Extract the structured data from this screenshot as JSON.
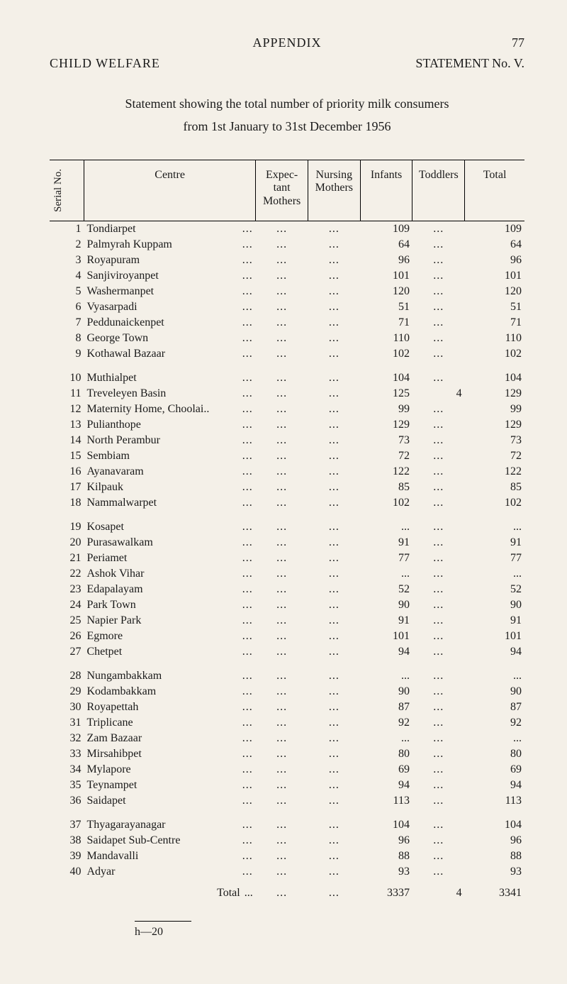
{
  "page": {
    "appendix": "APPENDIX",
    "page_number": "77",
    "left_title": "CHILD WELFARE",
    "right_title": "STATEMENT No. V.",
    "intro_line1": "Statement showing the total number of priority milk consumers",
    "intro_line2": "from 1st January to 31st December 1956",
    "footer": "h—20"
  },
  "table": {
    "columns": {
      "serial": "Serial\nNo.",
      "centre": "Centre",
      "expectant": "Expec-\ntant\nMothers",
      "nursing": "Nursing\nMothers",
      "infants": "Infants",
      "toddlers": "Toddlers",
      "total": "Total"
    },
    "rows": [
      {
        "n": "1",
        "centre": "Tondiarpet",
        "exp": "...",
        "nur": "...",
        "inf": "109",
        "tod": "...",
        "tot": "109"
      },
      {
        "n": "2",
        "centre": "Palmyrah Kuppam",
        "exp": "...",
        "nur": "...",
        "inf": "64",
        "tod": "...",
        "tot": "64"
      },
      {
        "n": "3",
        "centre": "Royapuram",
        "exp": "...",
        "nur": "...",
        "inf": "96",
        "tod": "...",
        "tot": "96"
      },
      {
        "n": "4",
        "centre": "Sanjiviroyanpet",
        "exp": "...",
        "nur": "...",
        "inf": "101",
        "tod": "...",
        "tot": "101"
      },
      {
        "n": "5",
        "centre": "Washermanpet",
        "exp": "...",
        "nur": "...",
        "inf": "120",
        "tod": "...",
        "tot": "120"
      },
      {
        "n": "6",
        "centre": "Vyasarpadi",
        "exp": "...",
        "nur": "...",
        "inf": "51",
        "tod": "...",
        "tot": "51"
      },
      {
        "n": "7",
        "centre": "Peddunaickenpet",
        "exp": "...",
        "nur": "...",
        "inf": "71",
        "tod": "...",
        "tot": "71"
      },
      {
        "n": "8",
        "centre": "George Town",
        "exp": "...",
        "nur": "...",
        "inf": "110",
        "tod": "...",
        "tot": "110"
      },
      {
        "n": "9",
        "centre": "Kothawal Bazaar",
        "exp": "...",
        "nur": "...",
        "inf": "102",
        "tod": "...",
        "tot": "102"
      },
      {
        "n": "10",
        "centre": "Muthialpet",
        "exp": "...",
        "nur": "...",
        "inf": "104",
        "tod": "...",
        "tot": "104",
        "gap": true
      },
      {
        "n": "11",
        "centre": "Treveleyen Basin",
        "exp": "...",
        "nur": "...",
        "inf": "125",
        "tod": "4",
        "tot": "129"
      },
      {
        "n": "12",
        "centre": "Maternity Home, Choolai..",
        "exp": "...",
        "nur": "...",
        "inf": "99",
        "tod": "...",
        "tot": "99"
      },
      {
        "n": "13",
        "centre": "Pulianthope",
        "exp": "...",
        "nur": "...",
        "inf": "129",
        "tod": "...",
        "tot": "129"
      },
      {
        "n": "14",
        "centre": "North Perambur",
        "exp": "...",
        "nur": "...",
        "inf": "73",
        "tod": "...",
        "tot": "73"
      },
      {
        "n": "15",
        "centre": "Sembiam",
        "exp": "...",
        "nur": "...",
        "inf": "72",
        "tod": "...",
        "tot": "72"
      },
      {
        "n": "16",
        "centre": "Ayanavaram",
        "exp": "...",
        "nur": "...",
        "inf": "122",
        "tod": "...",
        "tot": "122"
      },
      {
        "n": "17",
        "centre": "Kilpauk",
        "exp": "...",
        "nur": "...",
        "inf": "85",
        "tod": "...",
        "tot": "85"
      },
      {
        "n": "18",
        "centre": "Nammalwarpet",
        "exp": "...",
        "nur": "...",
        "inf": "102",
        "tod": "...",
        "tot": "102"
      },
      {
        "n": "19",
        "centre": "Kosapet",
        "exp": "...",
        "nur": "...",
        "inf": "...",
        "tod": "...",
        "tot": "...",
        "gap": true
      },
      {
        "n": "20",
        "centre": "Purasawalkam",
        "exp": "...",
        "nur": "...",
        "inf": "91",
        "tod": "...",
        "tot": "91"
      },
      {
        "n": "21",
        "centre": "Periamet",
        "exp": "...",
        "nur": "...",
        "inf": "77",
        "tod": "...",
        "tot": "77"
      },
      {
        "n": "22",
        "centre": "Ashok Vihar",
        "exp": "...",
        "nur": "...",
        "inf": "...",
        "tod": "...",
        "tot": "..."
      },
      {
        "n": "23",
        "centre": "Edapalayam",
        "exp": "...",
        "nur": "...",
        "inf": "52",
        "tod": "...",
        "tot": "52"
      },
      {
        "n": "24",
        "centre": "Park Town",
        "exp": "...",
        "nur": "...",
        "inf": "90",
        "tod": "...",
        "tot": "90"
      },
      {
        "n": "25",
        "centre": "Napier Park",
        "exp": "...",
        "nur": "...",
        "inf": "91",
        "tod": "...",
        "tot": "91"
      },
      {
        "n": "26",
        "centre": "Egmore",
        "exp": "...",
        "nur": "...",
        "inf": "101",
        "tod": "...",
        "tot": "101"
      },
      {
        "n": "27",
        "centre": "Chetpet",
        "exp": "...",
        "nur": "...",
        "inf": "94",
        "tod": "...",
        "tot": "94"
      },
      {
        "n": "28",
        "centre": "Nungambakkam",
        "exp": "...",
        "nur": "...",
        "inf": "...",
        "tod": "...",
        "tot": "...",
        "gap": true
      },
      {
        "n": "29",
        "centre": "Kodambakkam",
        "exp": "...",
        "nur": "...",
        "inf": "90",
        "tod": "...",
        "tot": "90"
      },
      {
        "n": "30",
        "centre": "Royapettah",
        "exp": "...",
        "nur": "...",
        "inf": "87",
        "tod": "...",
        "tot": "87"
      },
      {
        "n": "31",
        "centre": "Triplicane",
        "exp": "...",
        "nur": "...",
        "inf": "92",
        "tod": "...",
        "tot": "92"
      },
      {
        "n": "32",
        "centre": "Zam Bazaar",
        "exp": "...",
        "nur": "...",
        "inf": "...",
        "tod": "...",
        "tot": "..."
      },
      {
        "n": "33",
        "centre": "Mirsahibpet",
        "exp": "...",
        "nur": "...",
        "inf": "80",
        "tod": "...",
        "tot": "80"
      },
      {
        "n": "34",
        "centre": "Mylapore",
        "exp": "...",
        "nur": "...",
        "inf": "69",
        "tod": "...",
        "tot": "69"
      },
      {
        "n": "35",
        "centre": "Teynampet",
        "exp": "...",
        "nur": "...",
        "inf": "94",
        "tod": "...",
        "tot": "94"
      },
      {
        "n": "36",
        "centre": "Saidapet",
        "exp": "...",
        "nur": "...",
        "inf": "113",
        "tod": "...",
        "tot": "113"
      },
      {
        "n": "37",
        "centre": "Thyagarayanagar",
        "exp": "...",
        "nur": "...",
        "inf": "104",
        "tod": "...",
        "tot": "104",
        "gap": true
      },
      {
        "n": "38",
        "centre": "Saidapet Sub-Centre",
        "exp": "...",
        "nur": "...",
        "inf": "96",
        "tod": "...",
        "tot": "96"
      },
      {
        "n": "39",
        "centre": "Mandavalli",
        "exp": "...",
        "nur": "...",
        "inf": "88",
        "tod": "...",
        "tot": "88"
      },
      {
        "n": "40",
        "centre": "Adyar",
        "exp": "...",
        "nur": "...",
        "inf": "93",
        "tod": "...",
        "tot": "93"
      }
    ],
    "total_row": {
      "label": "Total",
      "trail": "...",
      "exp": "...",
      "nur": "...",
      "inf": "3337",
      "tod": "4",
      "tot": "3341"
    }
  }
}
